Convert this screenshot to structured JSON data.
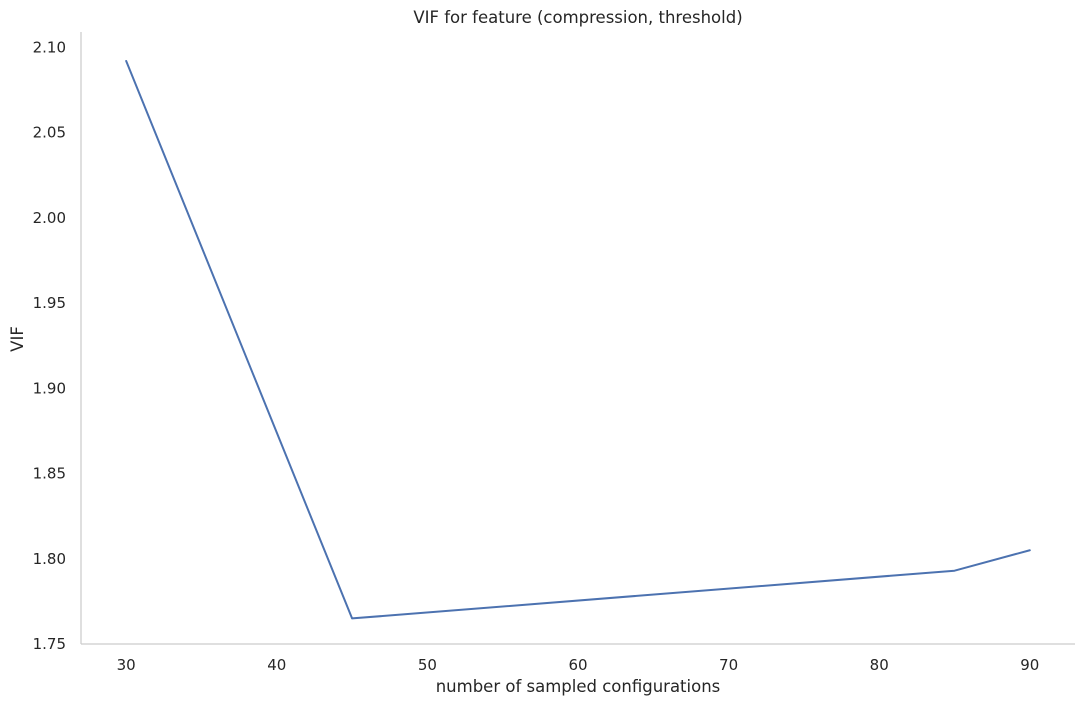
{
  "chart_data": {
    "type": "line",
    "title": "VIF for feature (compression, threshold)",
    "xlabel": "number of sampled configurations",
    "ylabel": "VIF",
    "x": [
      30,
      45,
      85,
      90
    ],
    "series": [
      {
        "values": [
          2.092,
          1.765,
          1.793,
          1.805
        ]
      }
    ],
    "xlim": [
      27,
      93
    ],
    "ylim": [
      1.75,
      2.109
    ],
    "xticks": [
      30,
      40,
      50,
      60,
      70,
      80,
      90
    ],
    "xtick_labels": [
      "30",
      "40",
      "50",
      "60",
      "70",
      "80",
      "90"
    ],
    "yticks": [
      1.75,
      1.8,
      1.85,
      1.9,
      1.95,
      2.0,
      2.05,
      2.1
    ],
    "ytick_labels": [
      "1.75",
      "1.80",
      "1.85",
      "1.90",
      "1.95",
      "2.00",
      "2.05",
      "2.10"
    ],
    "grid": false,
    "line_color": "#4c72b0"
  }
}
